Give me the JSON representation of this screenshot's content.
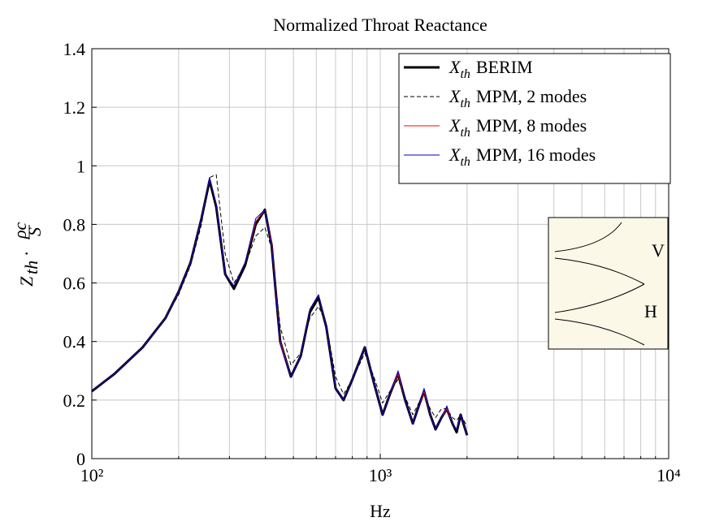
{
  "chart_data": {
    "type": "line",
    "title": "Normalized Throat Reactance",
    "x_label": "Hz",
    "y_label": {
      "base": "Z",
      "sub": "th",
      "mid": "·",
      "frac_num": "ρc",
      "frac_den": "S"
    },
    "x": [
      100,
      120,
      150,
      180,
      200,
      220,
      240,
      256,
      270,
      290,
      311,
      340,
      370,
      398,
      420,
      450,
      490,
      530,
      570,
      611,
      650,
      700,
      746,
      800,
      884,
      950,
      1019,
      1080,
      1153,
      1220,
      1297,
      1360,
      1419,
      1490,
      1555,
      1630,
      1702,
      1780,
      1840,
      1900,
      2000
    ],
    "series": [
      {
        "symbol": "X",
        "symbol_sub": "th",
        "name": "BERIM",
        "color": "#000000",
        "width": 3,
        "dashed": false,
        "values": [
          0.23,
          0.29,
          0.38,
          0.48,
          0.57,
          0.67,
          0.82,
          0.95,
          0.86,
          0.63,
          0.58,
          0.66,
          0.8,
          0.85,
          0.73,
          0.4,
          0.28,
          0.35,
          0.5,
          0.55,
          0.45,
          0.24,
          0.2,
          0.27,
          0.38,
          0.26,
          0.15,
          0.22,
          0.29,
          0.2,
          0.12,
          0.18,
          0.23,
          0.15,
          0.1,
          0.14,
          0.17,
          0.12,
          0.09,
          0.15,
          0.08
        ]
      },
      {
        "symbol": "X",
        "symbol_sub": "th",
        "name": "MPM, 2 modes",
        "color": "#000000",
        "width": 1,
        "dashed": true,
        "values": [
          0.23,
          0.29,
          0.38,
          0.48,
          0.56,
          0.66,
          0.8,
          0.96,
          0.97,
          0.7,
          0.6,
          0.66,
          0.76,
          0.79,
          0.72,
          0.45,
          0.32,
          0.36,
          0.48,
          0.52,
          0.46,
          0.28,
          0.22,
          0.27,
          0.36,
          0.28,
          0.19,
          0.23,
          0.27,
          0.21,
          0.15,
          0.19,
          0.22,
          0.17,
          0.14,
          0.17,
          0.17,
          0.14,
          0.13,
          0.15,
          0.11
        ]
      },
      {
        "symbol": "X",
        "symbol_sub": "th",
        "name": "MPM, 8 modes",
        "color": "#ff0000",
        "width": 1,
        "dashed": false,
        "values": [
          0.23,
          0.29,
          0.38,
          0.48,
          0.57,
          0.67,
          0.82,
          0.96,
          0.87,
          0.63,
          0.59,
          0.67,
          0.81,
          0.85,
          0.74,
          0.4,
          0.28,
          0.35,
          0.51,
          0.56,
          0.45,
          0.24,
          0.2,
          0.27,
          0.38,
          0.26,
          0.15,
          0.22,
          0.29,
          0.2,
          0.12,
          0.18,
          0.23,
          0.15,
          0.1,
          0.14,
          0.17,
          0.12,
          0.1,
          0.15,
          0.08
        ]
      },
      {
        "symbol": "X",
        "symbol_sub": "th",
        "name": "MPM, 16 modes",
        "color": "#0000cc",
        "width": 1,
        "dashed": false,
        "values": [
          0.23,
          0.29,
          0.38,
          0.48,
          0.57,
          0.67,
          0.82,
          0.96,
          0.87,
          0.63,
          0.59,
          0.67,
          0.82,
          0.85,
          0.73,
          0.39,
          0.28,
          0.35,
          0.51,
          0.56,
          0.45,
          0.24,
          0.2,
          0.27,
          0.38,
          0.26,
          0.15,
          0.22,
          0.3,
          0.2,
          0.12,
          0.18,
          0.24,
          0.15,
          0.1,
          0.14,
          0.18,
          0.12,
          0.1,
          0.15,
          0.08
        ]
      }
    ],
    "log_x": true,
    "xlim": [
      100,
      10000
    ],
    "xticks": [
      {
        "value": 100,
        "label": "10²"
      },
      {
        "value": 1000,
        "label": "10³"
      },
      {
        "value": 10000,
        "label": "10⁴"
      }
    ],
    "x_minor_ticks": [
      200,
      300,
      400,
      500,
      600,
      700,
      800,
      900,
      2000,
      3000,
      4000,
      5000,
      6000,
      7000,
      8000,
      9000
    ],
    "ylim": [
      0,
      1.4
    ],
    "yticks": [
      0,
      0.2,
      0.4,
      0.6,
      0.8,
      1,
      1.2,
      1.4
    ],
    "grid": true,
    "legend": "top-right",
    "inset_labels": [
      "V",
      "H"
    ]
  }
}
